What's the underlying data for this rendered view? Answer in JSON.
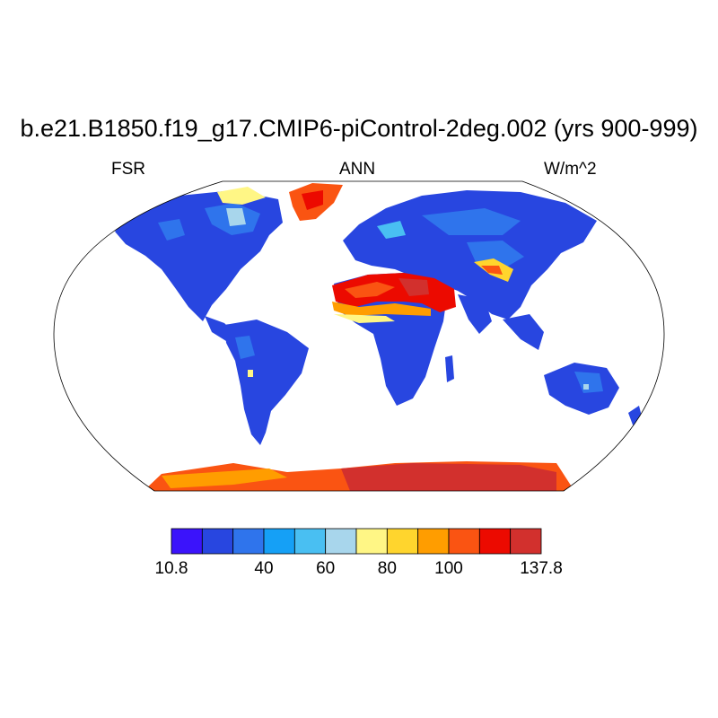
{
  "title": "b.e21.B1850.f19_g17.CMIP6-piControl-2deg.002 (yrs 900-999)",
  "left_label": "FSR",
  "center_label": "ANN",
  "right_label": "W/m^2",
  "colorbar": {
    "colors": [
      "#3b13fb",
      "#2846e0",
      "#2f74ec",
      "#15a0f6",
      "#49bff2",
      "#a8d6ec",
      "#fff685",
      "#ffd52d",
      "#ff9d00",
      "#fa5412",
      "#ec0a00",
      "#d2302d"
    ],
    "tick_labels": [
      "10.8",
      "40",
      "60",
      "80",
      "100",
      "137.8"
    ]
  },
  "colors": {
    "ocean": "#ffffff",
    "land_low": "#2846e0",
    "land_mid": "#2f74ec",
    "desert": "#ec0a00",
    "ice": "#d2302d"
  }
}
